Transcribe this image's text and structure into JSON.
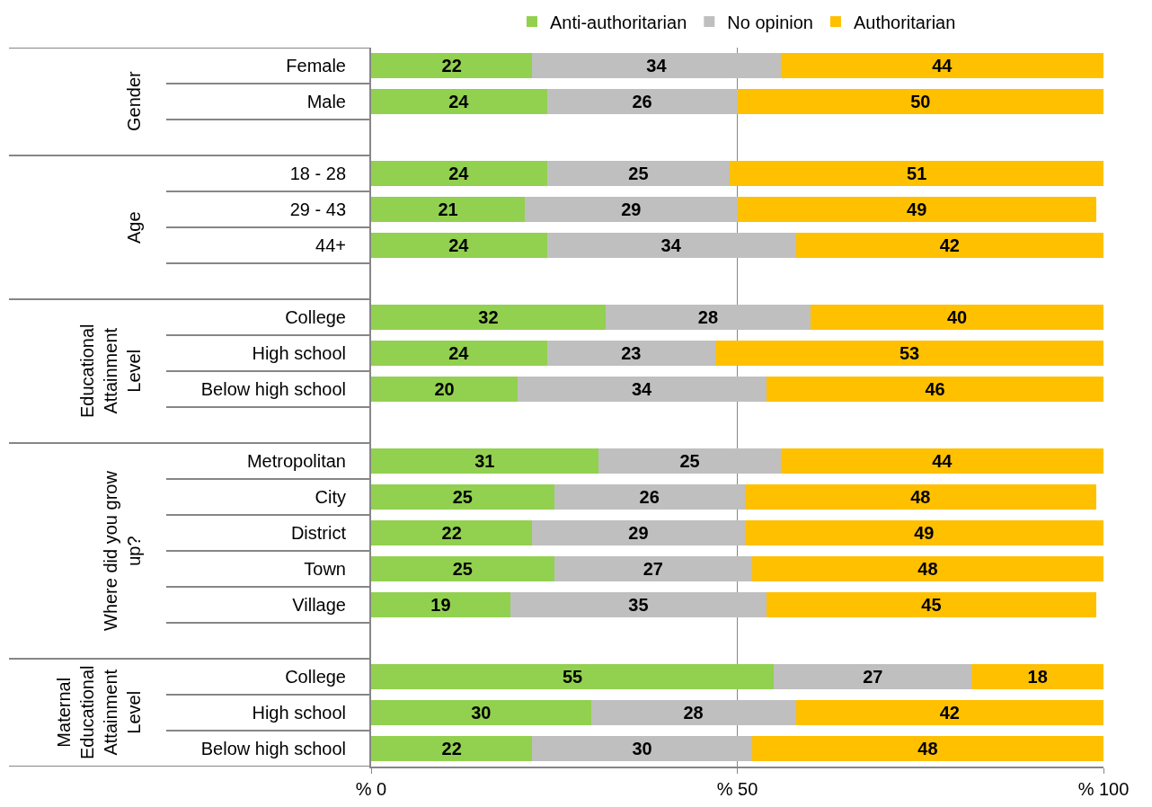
{
  "chart_data": {
    "type": "bar",
    "orientation": "horizontal",
    "stacked": true,
    "data_labels": true,
    "categories": [
      "Female",
      "Male",
      null,
      "18 - 28",
      "29 - 43",
      "44+",
      null,
      "College",
      "High school",
      "Below high school",
      null,
      "Metropolitan",
      "City",
      "District",
      "Town",
      "Village",
      null,
      "College",
      "High school",
      "Below high school"
    ],
    "series": [
      {
        "name": "Anti-authoritarian",
        "color": "#92d050",
        "values": [
          22,
          24,
          null,
          24,
          21,
          24,
          null,
          32,
          24,
          20,
          null,
          31,
          25,
          22,
          25,
          19,
          null,
          55,
          30,
          22
        ]
      },
      {
        "name": "No opinion",
        "color": "#bfbfbf",
        "values": [
          34,
          26,
          null,
          25,
          29,
          34,
          null,
          28,
          23,
          34,
          null,
          25,
          26,
          29,
          27,
          35,
          null,
          27,
          28,
          30
        ]
      },
      {
        "name": "Authoritarian",
        "color": "#ffc000",
        "values": [
          44,
          50,
          null,
          51,
          49,
          42,
          null,
          40,
          53,
          46,
          null,
          44,
          48,
          49,
          48,
          45,
          null,
          18,
          42,
          48
        ]
      }
    ],
    "annotations": [
      "Gender",
      "Age",
      "Educational Attainment Level",
      "Where did you grow up?",
      "Maternal Educational Attainment Level"
    ],
    "xlim": [
      0,
      100
    ],
    "xticks": [
      {
        "value": 0,
        "label": "% 0"
      },
      {
        "value": 50,
        "label": "% 50"
      },
      {
        "value": 100,
        "label": "% 100"
      }
    ],
    "grid": "x",
    "legend": "top"
  }
}
